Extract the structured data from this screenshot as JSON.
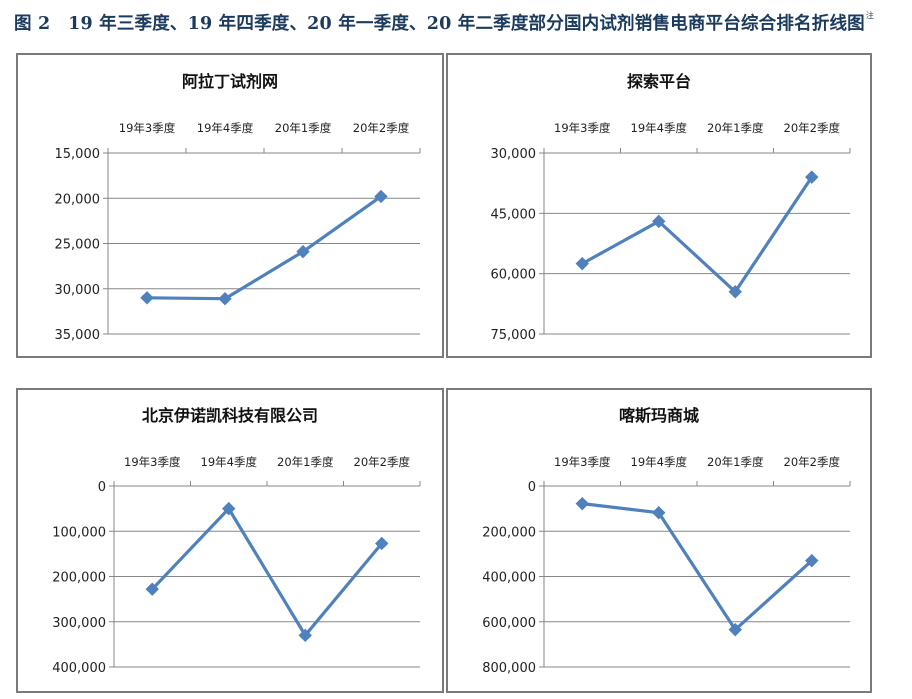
{
  "figure": {
    "label": "图 2",
    "title": "19 年三季度、19 年四季度、20 年一季度、20 年二季度部分国内试剂销售电商平台综合排名折线图",
    "note_mark": "注"
  },
  "colors": {
    "line": "#4f81bd",
    "marker": "#4f81bd",
    "grid": "#878787",
    "axis": "#878787"
  },
  "chart_data": [
    {
      "type": "line",
      "title": "阿拉丁试剂网",
      "categories": [
        "19年3季度",
        "19年4季度",
        "20年1季度",
        "20年2季度"
      ],
      "values": [
        31000,
        31100,
        25900,
        19800
      ],
      "ylim": [
        15000,
        35000
      ],
      "yticks": [
        15000,
        20000,
        25000,
        30000,
        35000
      ],
      "ytick_labels": [
        "15,000",
        "20,000",
        "25,000",
        "30,000",
        "35,000"
      ],
      "y_reversed": true,
      "x_labels_position": "top",
      "grid": true
    },
    {
      "type": "line",
      "title": "探索平台",
      "categories": [
        "19年3季度",
        "19年4季度",
        "20年1季度",
        "20年2季度"
      ],
      "values": [
        57500,
        47000,
        64500,
        36000
      ],
      "ylim": [
        30000,
        75000
      ],
      "yticks": [
        30000,
        45000,
        60000,
        75000
      ],
      "ytick_labels": [
        "30,000",
        "45,000",
        "60,000",
        "75,000"
      ],
      "y_reversed": true,
      "x_labels_position": "top",
      "grid": true
    },
    {
      "type": "line",
      "title": "北京伊诺凯科技有限公司",
      "categories": [
        "19年3季度",
        "19年4季度",
        "20年1季度",
        "20年2季度"
      ],
      "values": [
        228000,
        50000,
        330000,
        127000
      ],
      "ylim": [
        0,
        400000
      ],
      "yticks": [
        0,
        100000,
        200000,
        300000,
        400000
      ],
      "ytick_labels": [
        "0",
        "100,000",
        "200,000",
        "300,000",
        "400,000"
      ],
      "y_reversed": true,
      "x_labels_position": "top",
      "grid": true
    },
    {
      "type": "line",
      "title": "喀斯玛商城",
      "categories": [
        "19年3季度",
        "19年4季度",
        "20年1季度",
        "20年2季度"
      ],
      "values": [
        78000,
        118000,
        635000,
        330000
      ],
      "ylim": [
        0,
        800000
      ],
      "yticks": [
        0,
        200000,
        400000,
        600000,
        800000
      ],
      "ytick_labels": [
        "0",
        "200,000",
        "400,000",
        "600,000",
        "800,000"
      ],
      "y_reversed": true,
      "x_labels_position": "top",
      "grid": true
    }
  ]
}
